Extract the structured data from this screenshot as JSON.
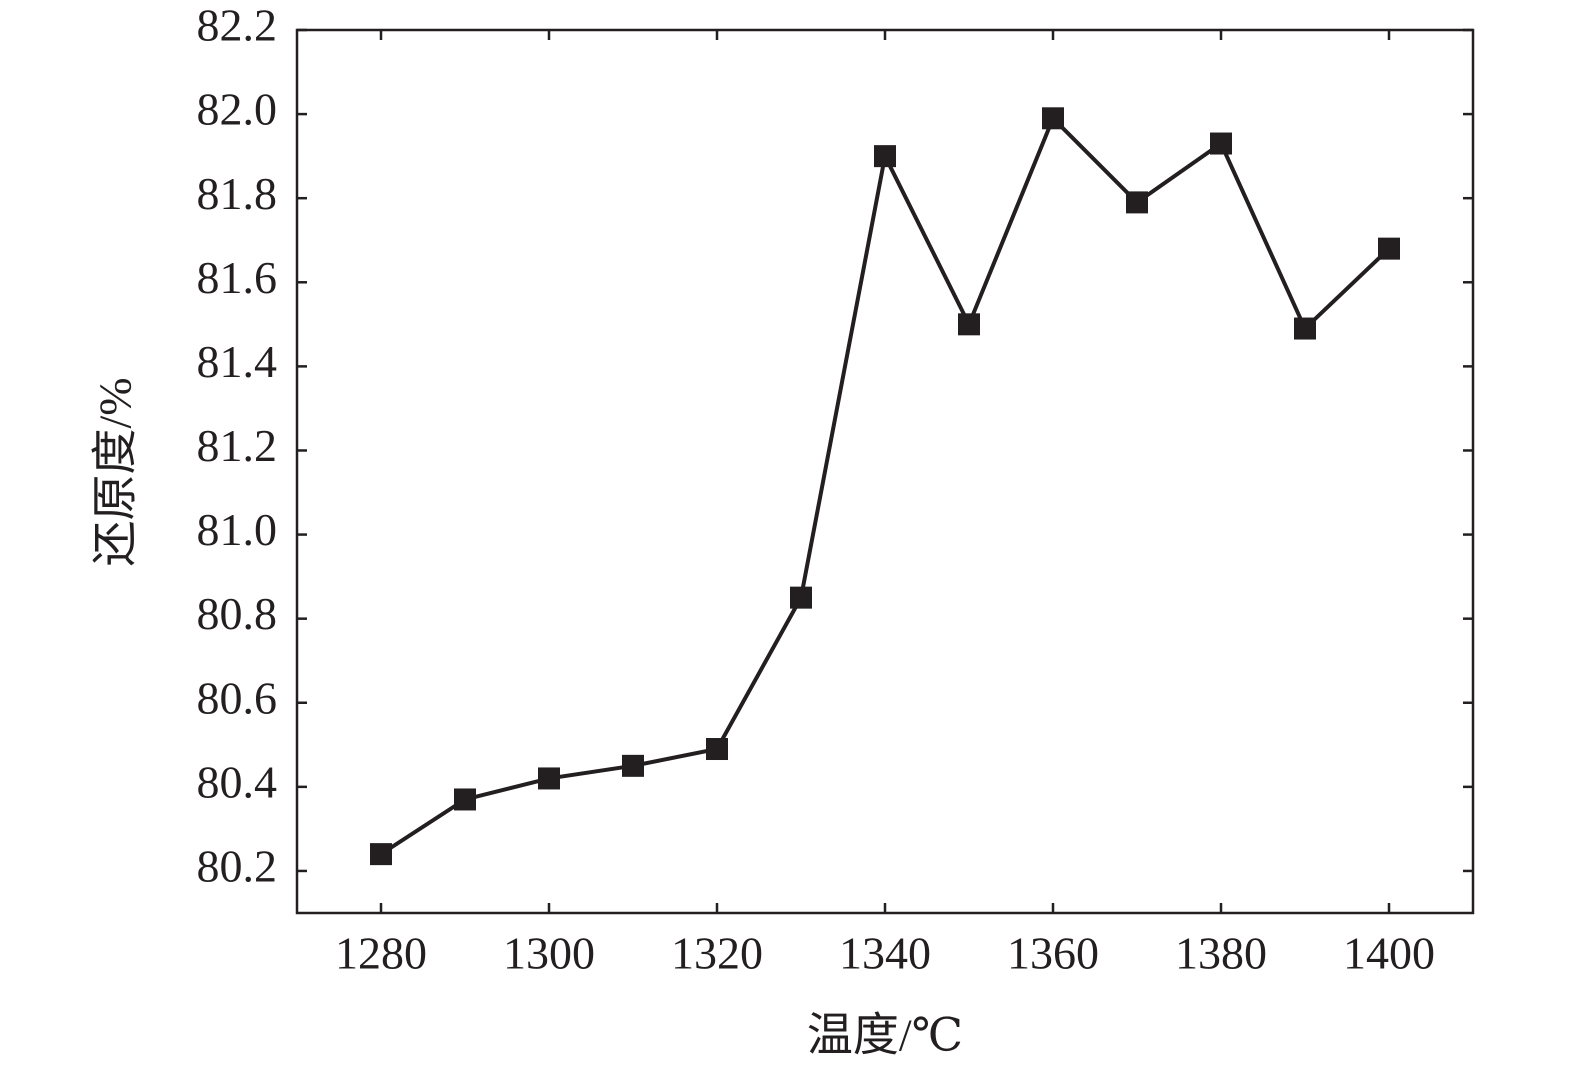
{
  "chart_data": {
    "type": "line",
    "x_label": "温度/℃",
    "y_label": "还原度/%",
    "x": [
      1280,
      1290,
      1300,
      1310,
      1320,
      1330,
      1340,
      1350,
      1360,
      1370,
      1380,
      1390,
      1400
    ],
    "series": [
      {
        "color": "#231f20",
        "values": [
          80.24,
          80.37,
          80.42,
          80.45,
          80.49,
          80.85,
          81.9,
          81.5,
          81.99,
          81.79,
          81.93,
          81.49,
          81.68
        ]
      }
    ],
    "xlim": [
      1270,
      1410
    ],
    "xticks": [
      1280,
      1300,
      1320,
      1340,
      1360,
      1380,
      1400
    ],
    "ylim": [
      80.1,
      82.2
    ],
    "yticks": [
      80.2,
      80.4,
      80.6,
      80.8,
      {
        "value": 81,
        "label": "81.0"
      },
      81.2,
      81.4,
      81.6,
      81.8,
      {
        "value": 82,
        "label": "82.0"
      },
      82.2
    ],
    "grid": false
  }
}
